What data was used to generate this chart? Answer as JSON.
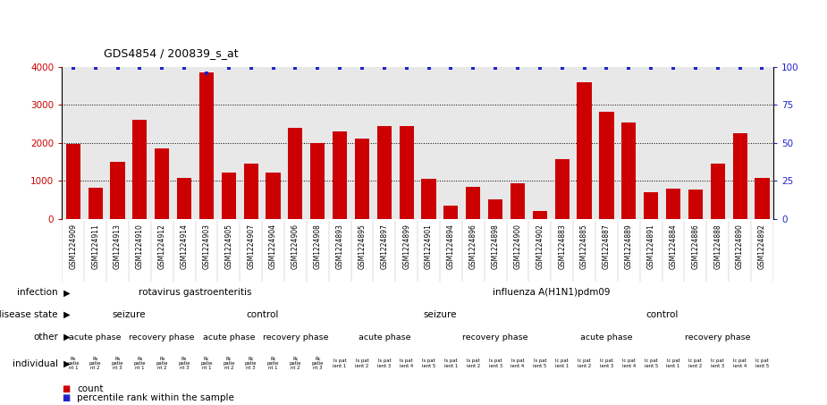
{
  "title": "GDS4854 / 200839_s_at",
  "sample_ids": [
    "GSM1224909",
    "GSM1224911",
    "GSM1224913",
    "GSM1224910",
    "GSM1224912",
    "GSM1224914",
    "GSM1224903",
    "GSM1224905",
    "GSM1224907",
    "GSM1224904",
    "GSM1224906",
    "GSM1224908",
    "GSM1224893",
    "GSM1224895",
    "GSM1224897",
    "GSM1224899",
    "GSM1224901",
    "GSM1224894",
    "GSM1224896",
    "GSM1224898",
    "GSM1224900",
    "GSM1224902",
    "GSM1224883",
    "GSM1224885",
    "GSM1224887",
    "GSM1224889",
    "GSM1224891",
    "GSM1224884",
    "GSM1224886",
    "GSM1224888",
    "GSM1224890",
    "GSM1224892"
  ],
  "bar_values": [
    1980,
    820,
    1500,
    2600,
    1850,
    1080,
    3850,
    1220,
    1450,
    1220,
    2400,
    2000,
    2300,
    2100,
    2450,
    2450,
    1060,
    350,
    830,
    500,
    930,
    200,
    1560,
    3600,
    2820,
    2540,
    700,
    800,
    760,
    1460,
    2260,
    1080
  ],
  "percentile_values": [
    99,
    99,
    99,
    99,
    99,
    99,
    96,
    99,
    99,
    99,
    99,
    99,
    99,
    99,
    99,
    99,
    99,
    99,
    99,
    99,
    99,
    99,
    99,
    99,
    99,
    99,
    99,
    99,
    99,
    99,
    99,
    99
  ],
  "bar_color": "#cc0000",
  "percentile_color": "#2222cc",
  "ylim_left": [
    0,
    4000
  ],
  "ylim_right": [
    0,
    100
  ],
  "yticks_left": [
    0,
    1000,
    2000,
    3000,
    4000
  ],
  "yticks_right": [
    0,
    25,
    50,
    75,
    100
  ],
  "chart_bg": "#e8e8e8",
  "label_bg": "#cccccc",
  "infection_row": {
    "label": "infection",
    "segments": [
      {
        "text": "rotavirus gastroenteritis",
        "start": 0,
        "end": 12,
        "color": "#aaddaa"
      },
      {
        "text": "influenza A(H1N1)pdm09",
        "start": 12,
        "end": 32,
        "color": "#66cc66"
      }
    ]
  },
  "disease_state_row": {
    "label": "disease state",
    "segments": [
      {
        "text": "seizure",
        "start": 0,
        "end": 6,
        "color": "#aabbee"
      },
      {
        "text": "control",
        "start": 6,
        "end": 12,
        "color": "#8899dd"
      },
      {
        "text": "seizure",
        "start": 12,
        "end": 22,
        "color": "#aabbee"
      },
      {
        "text": "control",
        "start": 22,
        "end": 32,
        "color": "#8899dd"
      }
    ]
  },
  "other_row": {
    "label": "other",
    "segments": [
      {
        "text": "acute phase",
        "start": 0,
        "end": 3,
        "color": "#ffbbff"
      },
      {
        "text": "recovery phase",
        "start": 3,
        "end": 6,
        "color": "#dd55cc"
      },
      {
        "text": "acute phase",
        "start": 6,
        "end": 9,
        "color": "#ffbbff"
      },
      {
        "text": "recovery phase",
        "start": 9,
        "end": 12,
        "color": "#dd55cc"
      },
      {
        "text": "acute phase",
        "start": 12,
        "end": 17,
        "color": "#ffbbff"
      },
      {
        "text": "recovery phase",
        "start": 17,
        "end": 22,
        "color": "#dd55cc"
      },
      {
        "text": "acute phase",
        "start": 22,
        "end": 27,
        "color": "#ffbbff"
      },
      {
        "text": "recovery phase",
        "start": 27,
        "end": 32,
        "color": "#dd55cc"
      }
    ]
  },
  "individual_row": {
    "label": "individual",
    "color": "#f5deb3"
  },
  "ind_texts": [
    "Rs\npatie\nnt 1",
    "Rs\npatie\nnt 2",
    "Rs\npatie\nnt 3",
    "Rs\npatie\nnt 1",
    "Rs\npatie\nnt 2",
    "Rs\npatie\nnt 3",
    "Rc\npatie\nnt 1",
    "Rc\npatie\nnt 2",
    "Rc\npatie\nnt 3",
    "Rc\npatie\nnt 1",
    "Rc\npatie\nnt 2",
    "Rc\npatie\nnt 3",
    "Is pat\nient 1",
    "Is pat\nient 2",
    "Is pat\nient 3",
    "Is pat\nient 4",
    "Is pat\nient 5",
    "Is pat\nient 1",
    "Is pat\nient 2",
    "Is pat\nient 3",
    "Is pat\nient 4",
    "Is pat\nient 5",
    "Ic pat\nient 1",
    "Ic pat\nient 2",
    "Ic pat\nient 3",
    "Ic pat\nient 4",
    "Ic pat\nient 5",
    "Ic pat\nient 1",
    "Ic pat\nient 2",
    "Ic pat\nient 3",
    "Ic pat\nient 4",
    "Ic pat\nient 5"
  ],
  "legend_items": [
    {
      "label": "count",
      "color": "#cc0000"
    },
    {
      "label": "percentile rank within the sample",
      "color": "#2222cc"
    }
  ]
}
